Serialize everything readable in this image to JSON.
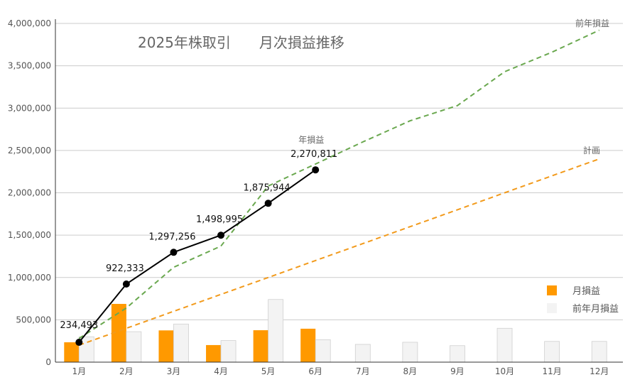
{
  "colors": {
    "monthly_bar": "#ff9900",
    "prev_monthly_bar": "#f3f3f3",
    "prev_monthly_bar_stroke": "#d0d0d0",
    "cumulative_line": "#000000",
    "prev_year_line": "#6aa84f",
    "plan_line": "#f29a1b",
    "grid": "#cccccc",
    "axis": "#333333"
  },
  "chart_data": {
    "type": "bar",
    "title": "2025年株取引　　月次損益推移",
    "categories": [
      "1月",
      "2月",
      "3月",
      "4月",
      "5月",
      "6月",
      "7月",
      "8月",
      "9月",
      "10月",
      "11月",
      "12月"
    ],
    "ylim": [
      0,
      4000000
    ],
    "yticks": [
      "0",
      "500,000",
      "1,000,000",
      "1,500,000",
      "2,000,000",
      "2,500,000",
      "3,000,000",
      "3,500,000",
      "4,000,000"
    ],
    "grid": true,
    "legend_position": "right",
    "legend": [
      "月損益",
      "前年月損益"
    ],
    "series": [
      {
        "name": "月損益",
        "kind": "bar",
        "values": [
          234493,
          687840,
          374923,
          201739,
          376949,
          394867,
          null,
          null,
          null,
          null,
          null,
          null
        ]
      },
      {
        "name": "前年月損益",
        "kind": "bar",
        "values": [
          300000,
          360000,
          450000,
          255000,
          740000,
          265000,
          210000,
          235000,
          195000,
          400000,
          245000,
          245000
        ]
      },
      {
        "name": "年損益",
        "kind": "line",
        "values": [
          234493,
          922333,
          1297256,
          1498995,
          1875944,
          2270811,
          null,
          null,
          null,
          null,
          null,
          null
        ],
        "data_labels": [
          "234,493",
          "922,333",
          "1,297,256",
          "1,498,995",
          "1,875,944",
          "2,270,811"
        ]
      },
      {
        "name": "前年損益",
        "kind": "dashed-line",
        "values": [
          280000,
          640000,
          1120000,
          1370000,
          2080000,
          2340000,
          2600000,
          2850000,
          3030000,
          3430000,
          3660000,
          3920000
        ]
      },
      {
        "name": "計画",
        "kind": "dashed-line",
        "values": [
          200000,
          400000,
          600000,
          800000,
          1000000,
          1200000,
          1400000,
          1600000,
          1800000,
          2000000,
          2200000,
          2400000
        ]
      }
    ]
  }
}
